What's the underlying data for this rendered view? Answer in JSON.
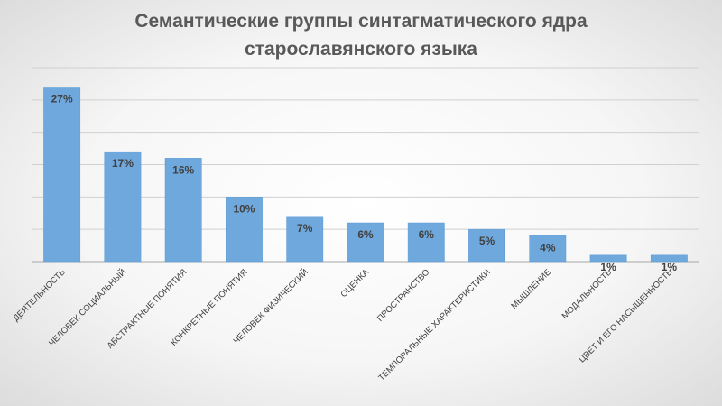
{
  "chart_data": {
    "type": "bar",
    "title_line1": "Семантические группы синтагматического ядра",
    "title_line2": "старославянского языка",
    "categories": [
      "ДЕЯТЕЛЬНОСТЬ",
      "ЧЕЛОВЕК СОЦИАЛЬНЫЙ",
      "АБСТРАКТНЫЕ ПОНЯТИЯ",
      "КОНКРЕТНЫЕ ПОНЯТИЯ",
      "ЧЕЛОВЕК ФИЗИЧЕСКИЙ",
      "ОЦЕНКА",
      "ПРОСТРАНСТВО",
      "ТЕМПОРАЛЬНЫЕ ХАРАКТЕРИСТИКИ",
      "МЫШЛЕНИЕ",
      "МОДАЛЬНОСТЬ",
      "ЦВЕТ И ЕГО НАСЫЩЕННОСТЬ"
    ],
    "values": [
      27,
      17,
      16,
      10,
      7,
      6,
      6,
      5,
      4,
      1,
      1
    ],
    "value_labels": [
      "27%",
      "17%",
      "16%",
      "10%",
      "7%",
      "6%",
      "6%",
      "5%",
      "4%",
      "1%",
      "1%"
    ],
    "ylim": [
      0,
      30
    ],
    "yticks": [
      0,
      5,
      10,
      15,
      20,
      25,
      30
    ],
    "grid": true,
    "legend": "none",
    "bar_color": "#6fa8dc",
    "bar_edge_color": "#5b9bd5"
  }
}
